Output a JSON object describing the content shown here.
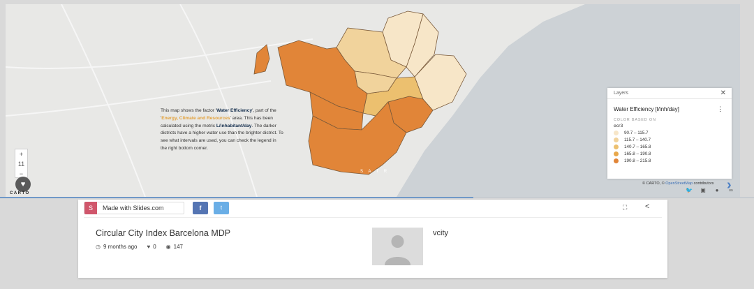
{
  "map": {
    "description": {
      "p1": "This map shows the factor '",
      "factor": "Water Efficiency",
      "p2": "', part of the '",
      "area": "Energy, Climate and Resources",
      "p3": "' area. This has been calculated using the metric ",
      "metric": "L/inhabitant/day",
      "p4": ". The darker districts have a higher water use than the brighter district. To see what intervals are used, you can check the legend in the right bottom corner."
    },
    "zoom": {
      "in": "+",
      "level": "11",
      "out": "−"
    },
    "carto_logo": "CARTO",
    "attribution": {
      "carto": "© CARTO, © ",
      "osm": "OpenStreetMap",
      "rest": " contributors"
    },
    "legend": {
      "header": "Layers",
      "close": "✕",
      "title": "Water Efficiency [l/inh/day]",
      "menu": "⋮",
      "color_based_on": "COLOR BASED ON",
      "field": "ecr3",
      "items": [
        {
          "label": "90.7 – 115.7",
          "color": "#f7e6c8"
        },
        {
          "label": "115.7 – 140.7",
          "color": "#f1d39c"
        },
        {
          "label": "140.7 – 165.8",
          "color": "#ecc06f"
        },
        {
          "label": "165.8 – 190.8",
          "color": "#e8a84a"
        },
        {
          "label": "190.8 – 215.8",
          "color": "#e18538"
        }
      ]
    }
  },
  "progress": 0.628,
  "card": {
    "made_badge": "S",
    "made_label": "Made with Slides.com",
    "fb": "f",
    "tw": "t",
    "title": "Circular City Index Barcelona MDP",
    "time": "9 months ago",
    "likes": "0",
    "views": "147",
    "user": "vcity"
  }
}
